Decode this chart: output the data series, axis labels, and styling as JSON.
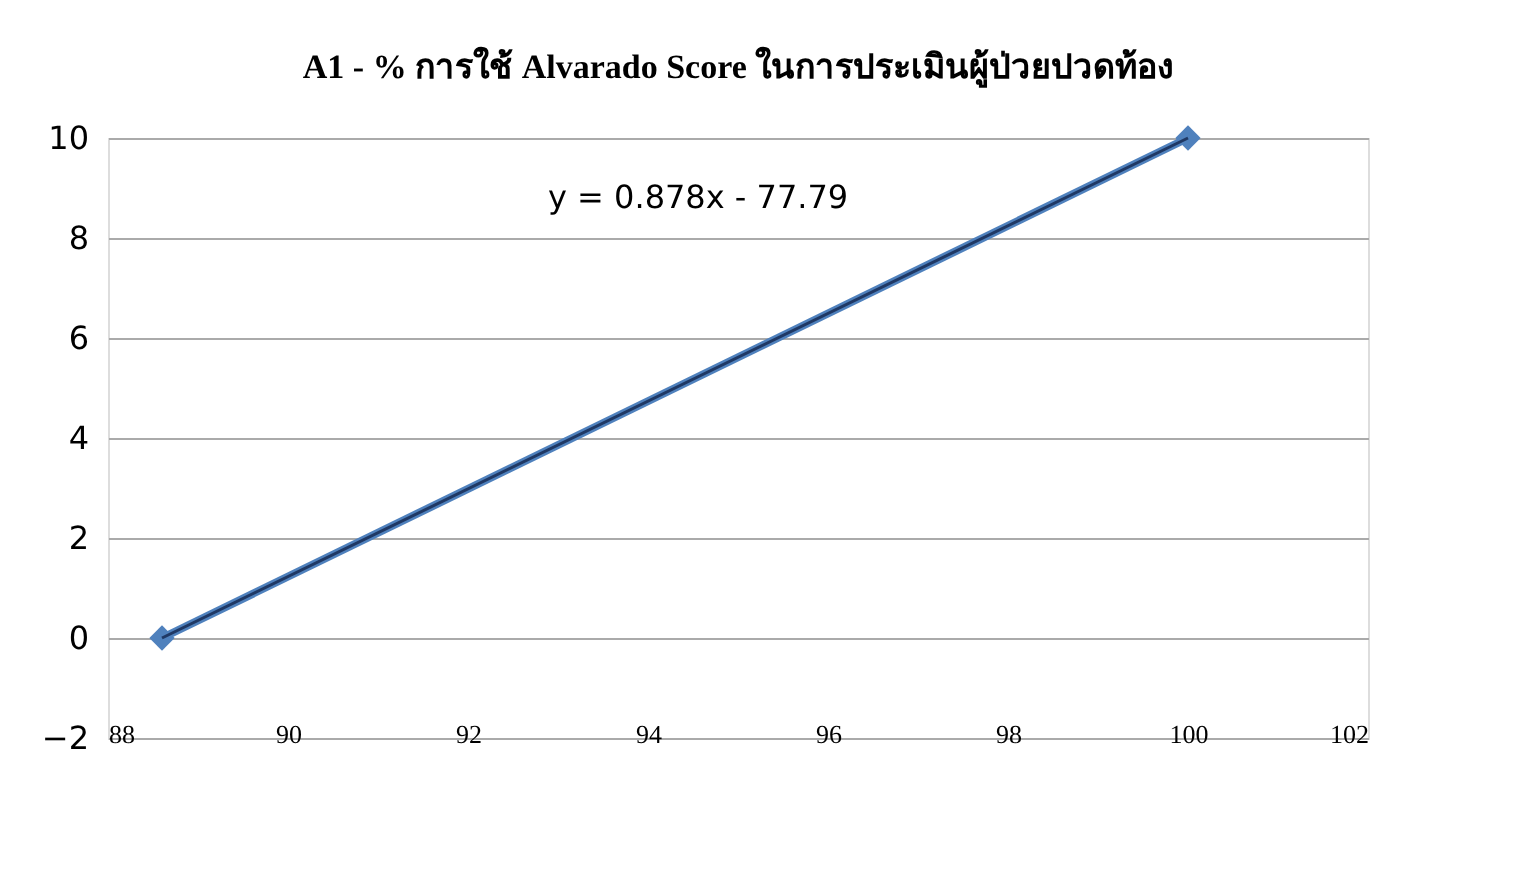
{
  "chart_data": {
    "type": "line",
    "title": "A1 - % การใช้ Alvarado Score ในการประเมินผู้ป่วยปวดท้อง",
    "series": [
      {
        "values": [
          0,
          10
        ],
        "color": "#4f81bd",
        "marker": "diamond"
      },
      {
        "type": "line",
        "values": [
          0,
          10
        ],
        "color": "#1f3864",
        "marker": "none"
      }
    ],
    "xlim": [
      88,
      102
    ],
    "xticks": [
      88,
      90,
      92,
      94,
      96,
      98,
      100,
      102
    ],
    "ylim": [
      -2,
      10
    ],
    "yticks": [
      -2,
      0,
      2,
      4,
      6,
      8,
      10
    ],
    "x": [
      88.6,
      100
    ],
    "grid": "y",
    "line_style": "solid",
    "annotations": [
      "y = 0.878x - 77.79"
    ]
  }
}
